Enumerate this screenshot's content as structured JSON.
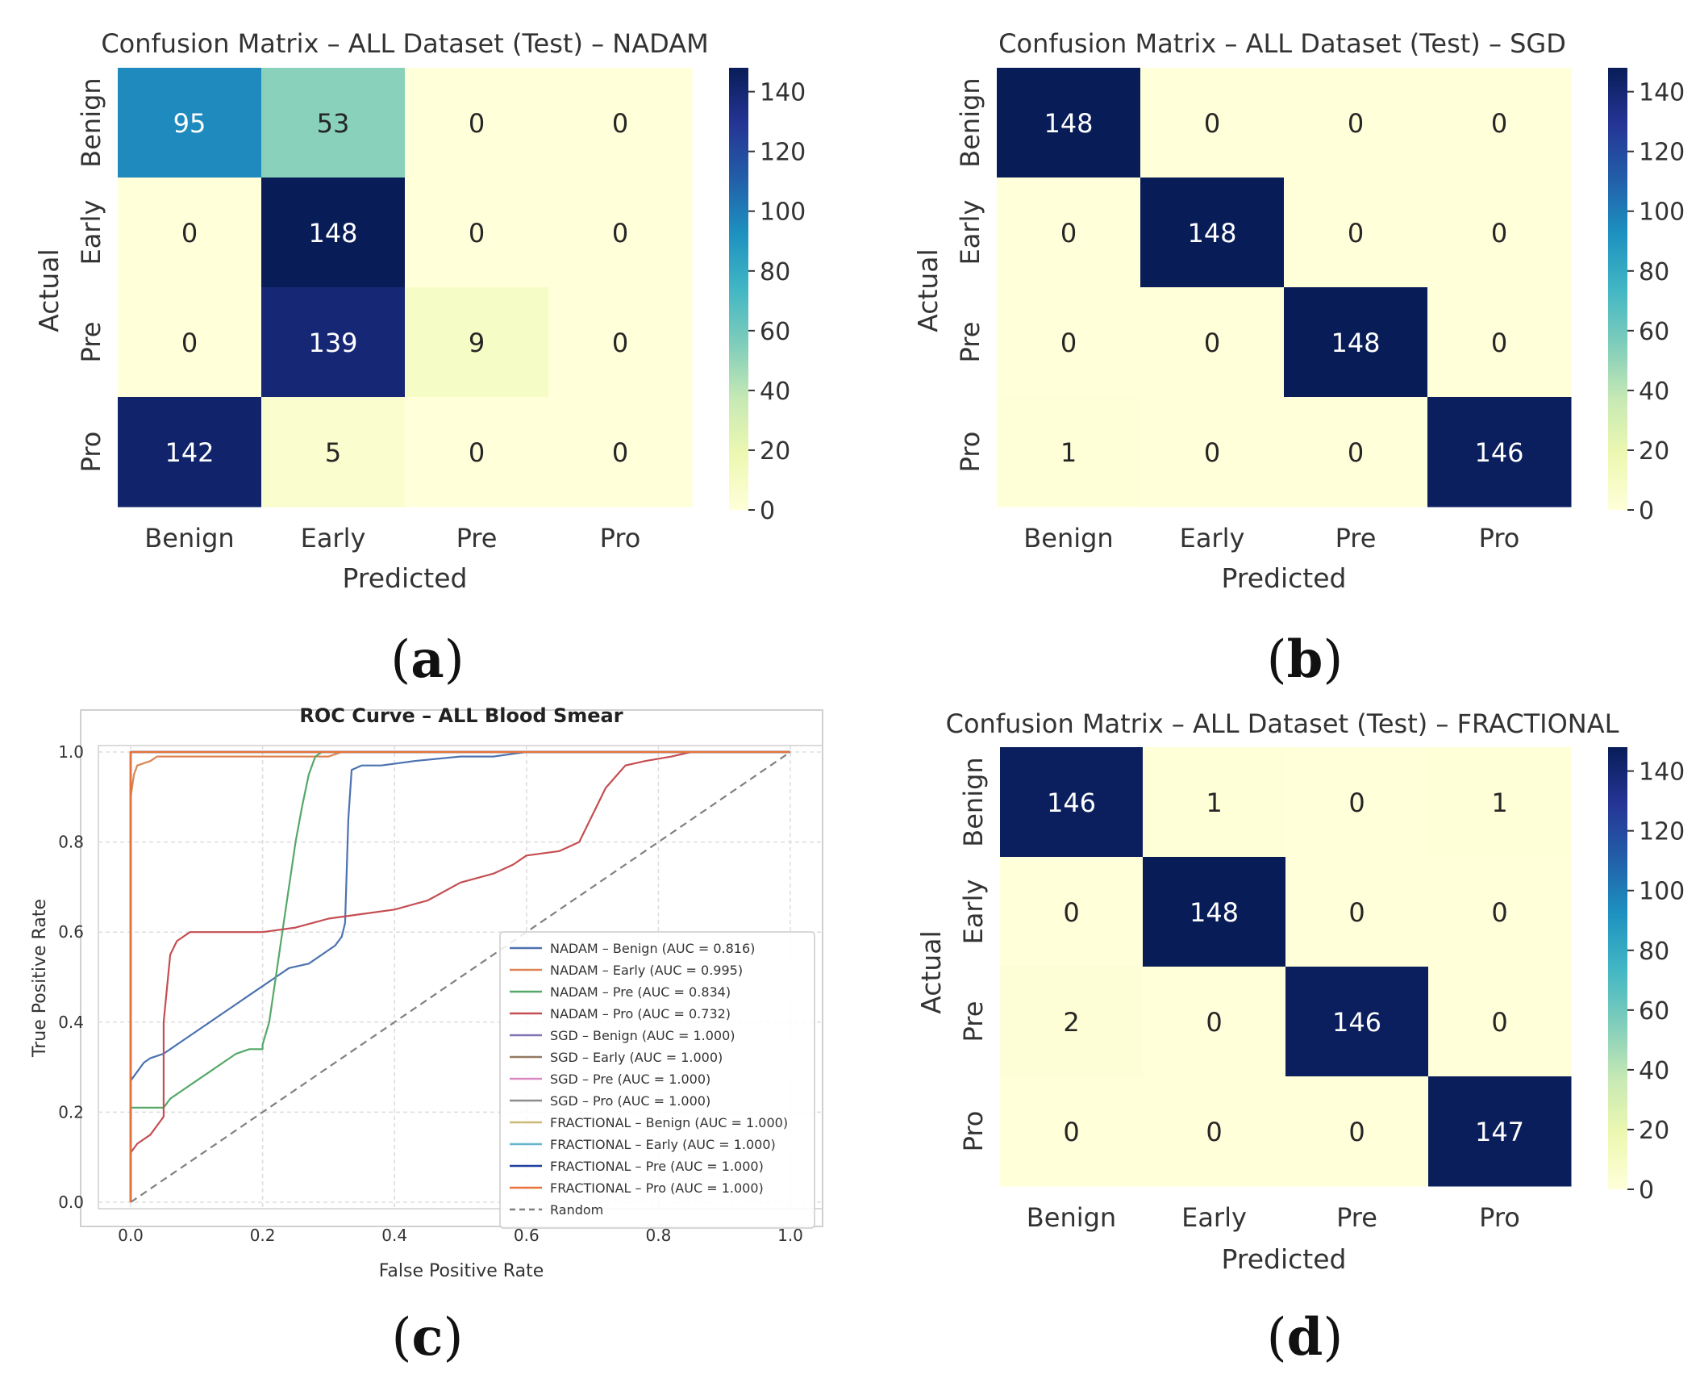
{
  "panel_labels": {
    "a": "a",
    "b": "b",
    "c": "c",
    "d": "d"
  },
  "colorbar": {
    "ticks": [
      0,
      20,
      40,
      60,
      80,
      100,
      120,
      140
    ],
    "max": 148
  },
  "chart_data": [
    {
      "type": "heatmap",
      "panel": "a",
      "title": "Confusion Matrix – ALL Dataset (Test) – NADAM",
      "xlabel": "Predicted",
      "ylabel": "Actual",
      "categories": [
        "Benign",
        "Early",
        "Pre",
        "Pro"
      ],
      "matrix": [
        [
          95,
          53,
          0,
          0
        ],
        [
          0,
          148,
          0,
          0
        ],
        [
          0,
          139,
          9,
          0
        ],
        [
          142,
          5,
          0,
          0
        ]
      ],
      "vmin": 0,
      "vmax": 148
    },
    {
      "type": "heatmap",
      "panel": "b",
      "title": "Confusion Matrix – ALL Dataset (Test) – SGD",
      "xlabel": "Predicted",
      "ylabel": "Actual",
      "categories": [
        "Benign",
        "Early",
        "Pre",
        "Pro"
      ],
      "matrix": [
        [
          148,
          0,
          0,
          0
        ],
        [
          0,
          148,
          0,
          0
        ],
        [
          0,
          0,
          148,
          0
        ],
        [
          1,
          0,
          0,
          146
        ]
      ],
      "vmin": 0,
      "vmax": 148
    },
    {
      "type": "line",
      "panel": "c",
      "title": "ROC Curve – ALL Blood Smear",
      "xlabel": "False Positive Rate",
      "ylabel": "True Positive Rate",
      "xlim": [
        0,
        1
      ],
      "ylim": [
        0,
        1
      ],
      "xticks": [
        "0.0",
        "0.2",
        "0.4",
        "0.6",
        "0.8",
        "1.0"
      ],
      "yticks": [
        "0.0",
        "0.2",
        "0.4",
        "0.6",
        "0.8",
        "1.0"
      ],
      "grid": true,
      "legend_position": "lower-right",
      "series": [
        {
          "name": "NADAM – Benign (AUC = 0.816)",
          "color": "#4c72b0",
          "points": [
            [
              0,
              0
            ],
            [
              0,
              0.27
            ],
            [
              0.005,
              0.28
            ],
            [
              0.01,
              0.29
            ],
            [
              0.02,
              0.31
            ],
            [
              0.03,
              0.32
            ],
            [
              0.05,
              0.33
            ],
            [
              0.06,
              0.34
            ],
            [
              0.08,
              0.36
            ],
            [
              0.1,
              0.38
            ],
            [
              0.12,
              0.4
            ],
            [
              0.14,
              0.42
            ],
            [
              0.16,
              0.44
            ],
            [
              0.18,
              0.46
            ],
            [
              0.2,
              0.48
            ],
            [
              0.22,
              0.5
            ],
            [
              0.24,
              0.52
            ],
            [
              0.27,
              0.53
            ],
            [
              0.29,
              0.55
            ],
            [
              0.31,
              0.57
            ],
            [
              0.32,
              0.59
            ],
            [
              0.325,
              0.62
            ],
            [
              0.33,
              0.85
            ],
            [
              0.335,
              0.96
            ],
            [
              0.35,
              0.97
            ],
            [
              0.38,
              0.97
            ],
            [
              0.43,
              0.98
            ],
            [
              0.5,
              0.99
            ],
            [
              0.55,
              0.99
            ],
            [
              0.6,
              1.0
            ],
            [
              1.0,
              1.0
            ]
          ]
        },
        {
          "name": "NADAM – Early (AUC = 0.995)",
          "color": "#dd8452",
          "points": [
            [
              0,
              0
            ],
            [
              0,
              0.9
            ],
            [
              0.005,
              0.95
            ],
            [
              0.01,
              0.97
            ],
            [
              0.03,
              0.98
            ],
            [
              0.04,
              0.99
            ],
            [
              0.3,
              0.99
            ],
            [
              0.32,
              1.0
            ],
            [
              1.0,
              1.0
            ]
          ]
        },
        {
          "name": "NADAM – Pre (AUC = 0.834)",
          "color": "#55a868",
          "points": [
            [
              0,
              0
            ],
            [
              0,
              0.21
            ],
            [
              0.05,
              0.21
            ],
            [
              0.06,
              0.23
            ],
            [
              0.08,
              0.25
            ],
            [
              0.1,
              0.27
            ],
            [
              0.12,
              0.29
            ],
            [
              0.14,
              0.31
            ],
            [
              0.16,
              0.33
            ],
            [
              0.18,
              0.34
            ],
            [
              0.2,
              0.34
            ],
            [
              0.2,
              0.35
            ],
            [
              0.21,
              0.4
            ],
            [
              0.22,
              0.5
            ],
            [
              0.23,
              0.6
            ],
            [
              0.24,
              0.7
            ],
            [
              0.25,
              0.8
            ],
            [
              0.26,
              0.88
            ],
            [
              0.27,
              0.95
            ],
            [
              0.28,
              0.99
            ],
            [
              0.29,
              1.0
            ],
            [
              1.0,
              1.0
            ]
          ]
        },
        {
          "name": "NADAM – Pro (AUC = 0.732)",
          "color": "#c44e52",
          "points": [
            [
              0,
              0
            ],
            [
              0,
              0.11
            ],
            [
              0.01,
              0.13
            ],
            [
              0.03,
              0.15
            ],
            [
              0.04,
              0.17
            ],
            [
              0.05,
              0.19
            ],
            [
              0.05,
              0.4
            ],
            [
              0.06,
              0.55
            ],
            [
              0.07,
              0.58
            ],
            [
              0.09,
              0.6
            ],
            [
              0.2,
              0.6
            ],
            [
              0.25,
              0.61
            ],
            [
              0.3,
              0.63
            ],
            [
              0.35,
              0.64
            ],
            [
              0.4,
              0.65
            ],
            [
              0.45,
              0.67
            ],
            [
              0.5,
              0.71
            ],
            [
              0.55,
              0.73
            ],
            [
              0.58,
              0.75
            ],
            [
              0.6,
              0.77
            ],
            [
              0.65,
              0.78
            ],
            [
              0.68,
              0.8
            ],
            [
              0.7,
              0.86
            ],
            [
              0.72,
              0.92
            ],
            [
              0.75,
              0.97
            ],
            [
              0.78,
              0.98
            ],
            [
              0.82,
              0.99
            ],
            [
              0.85,
              1.0
            ],
            [
              1.0,
              1.0
            ]
          ]
        },
        {
          "name": "SGD – Benign (AUC = 1.000)",
          "color": "#8172b3",
          "points": [
            [
              0,
              0
            ],
            [
              0,
              1.0
            ],
            [
              1.0,
              1.0
            ]
          ]
        },
        {
          "name": "SGD – Early (AUC = 1.000)",
          "color": "#937860",
          "points": [
            [
              0,
              0
            ],
            [
              0,
              1.0
            ],
            [
              1.0,
              1.0
            ]
          ]
        },
        {
          "name": "SGD – Pre (AUC = 1.000)",
          "color": "#da8bc3",
          "points": [
            [
              0,
              0
            ],
            [
              0,
              1.0
            ],
            [
              1.0,
              1.0
            ]
          ]
        },
        {
          "name": "SGD – Pro (AUC = 1.000)",
          "color": "#8c8c8c",
          "points": [
            [
              0,
              0
            ],
            [
              0,
              1.0
            ],
            [
              1.0,
              1.0
            ]
          ]
        },
        {
          "name": "FRACTIONAL – Benign (AUC = 1.000)",
          "color": "#ccb974",
          "points": [
            [
              0,
              0
            ],
            [
              0,
              1.0
            ],
            [
              1.0,
              1.0
            ]
          ]
        },
        {
          "name": "FRACTIONAL – Early (AUC = 1.000)",
          "color": "#64b5cd",
          "points": [
            [
              0,
              0
            ],
            [
              0,
              1.0
            ],
            [
              1.0,
              1.0
            ]
          ]
        },
        {
          "name": "FRACTIONAL – Pre (AUC = 1.000)",
          "color": "#1f3fa0",
          "points": [
            [
              0,
              0
            ],
            [
              0,
              1.0
            ],
            [
              1.0,
              1.0
            ]
          ]
        },
        {
          "name": "FRACTIONAL – Pro (AUC = 1.000)",
          "color": "#e8733a",
          "points": [
            [
              0,
              0
            ],
            [
              0,
              1.0
            ],
            [
              1.0,
              1.0
            ]
          ]
        },
        {
          "name": "Random",
          "color": "#808080",
          "dashed": true,
          "points": [
            [
              0,
              0
            ],
            [
              1.0,
              1.0
            ]
          ]
        }
      ]
    },
    {
      "type": "heatmap",
      "panel": "d",
      "title": "Confusion Matrix – ALL Dataset (Test) – FRACTIONAL",
      "xlabel": "Predicted",
      "ylabel": "Actual",
      "categories": [
        "Benign",
        "Early",
        "Pre",
        "Pro"
      ],
      "matrix": [
        [
          146,
          1,
          0,
          1
        ],
        [
          0,
          148,
          0,
          0
        ],
        [
          2,
          0,
          146,
          0
        ],
        [
          0,
          0,
          0,
          147
        ]
      ],
      "vmin": 0,
      "vmax": 148
    }
  ]
}
